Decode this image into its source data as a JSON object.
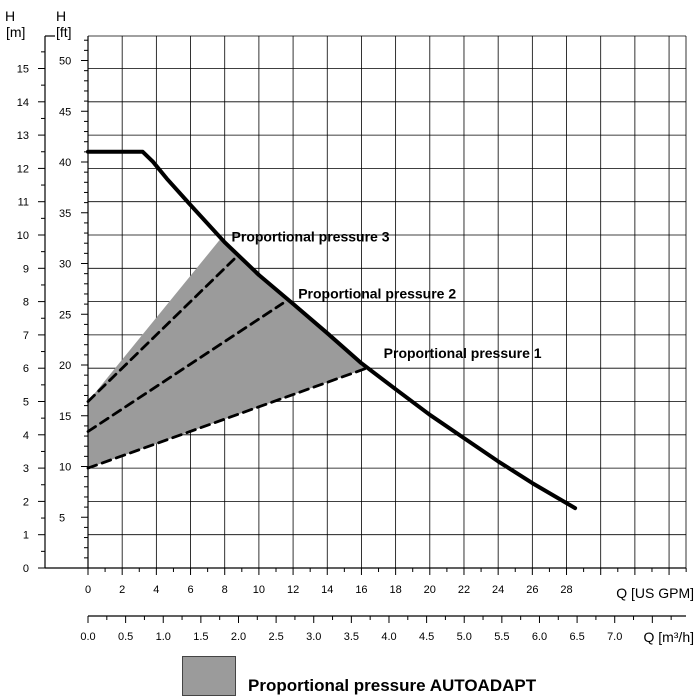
{
  "chart_data": {
    "type": "line",
    "axes": {
      "left_m": {
        "title": "H",
        "unit": "[m]",
        "range": [
          0,
          16
        ],
        "ticks": [
          0,
          1,
          2,
          3,
          4,
          5,
          6,
          7,
          8,
          9,
          10,
          11,
          12,
          13,
          14,
          15
        ]
      },
      "left_ft": {
        "title": "H",
        "unit": "[ft]",
        "range": [
          0,
          52.5
        ],
        "ticks": [
          5,
          10,
          15,
          20,
          25,
          30,
          35,
          40,
          45,
          50
        ]
      },
      "bottom_gpm": {
        "label": "Q [US GPM]",
        "range": [
          0,
          35
        ],
        "ticks": [
          0,
          2,
          4,
          6,
          8,
          10,
          12,
          14,
          16,
          18,
          20,
          22,
          24,
          26,
          28
        ]
      },
      "bottom_m3h": {
        "label": "Q [m³/h]",
        "range": [
          0,
          7.95
        ],
        "ticks": [
          "0.0",
          "0.5",
          "1.0",
          "1.5",
          "2.0",
          "2.5",
          "3.0",
          "3.5",
          "4.0",
          "4.5",
          "5.0",
          "5.5",
          "6.0",
          "6.5",
          "7.0"
        ]
      },
      "grid": true
    },
    "series": [
      {
        "name": "",
        "style": "solid",
        "x_gpm": [
          0,
          3.2,
          3.8,
          4.6,
          6.0,
          8.0,
          10.0,
          12.0,
          14.0,
          16.0,
          18.0,
          20.0,
          22.0,
          24.0,
          26.0,
          28.5
        ],
        "y_m": [
          12.5,
          12.5,
          12.2,
          11.7,
          10.9,
          9.78,
          8.8,
          7.93,
          7.05,
          6.15,
          5.37,
          4.6,
          3.9,
          3.2,
          2.55,
          1.8
        ]
      },
      {
        "name": "Proportional pressure 1",
        "style": "dashed",
        "x_gpm": [
          0,
          16.3
        ],
        "y_m": [
          3.0,
          6.0
        ]
      },
      {
        "name": "Proportional pressure 2",
        "style": "dashed",
        "x_gpm": [
          0,
          11.4
        ],
        "y_m": [
          4.1,
          7.95
        ]
      },
      {
        "name": "Proportional pressure 3",
        "style": "dashed",
        "x_gpm": [
          0,
          8.7
        ],
        "y_m": [
          5.0,
          9.35
        ]
      }
    ],
    "shaded_area": {
      "name": "Proportional pressure AUTOADAPT",
      "color": "#9b9b9b",
      "polygon_gpm_m": [
        [
          0,
          5.0
        ],
        [
          7.7,
          9.85
        ],
        [
          8.0,
          9.78
        ],
        [
          10.0,
          8.8
        ],
        [
          12.0,
          7.93
        ],
        [
          14.0,
          7.05
        ],
        [
          16.3,
          6.0
        ],
        [
          0,
          3.0
        ]
      ]
    },
    "annotations": [
      {
        "text": "Proportional pressure 3",
        "x_gpm": 8.4,
        "y_m": 9.8
      },
      {
        "text": "Proportional pressure 2",
        "x_gpm": 12.3,
        "y_m": 8.1
      },
      {
        "text": "Proportional pressure 1",
        "x_gpm": 17.3,
        "y_m": 6.3
      }
    ],
    "legend": {
      "placement": "bottom",
      "label": "Proportional pressure AUTOADAPT"
    }
  }
}
